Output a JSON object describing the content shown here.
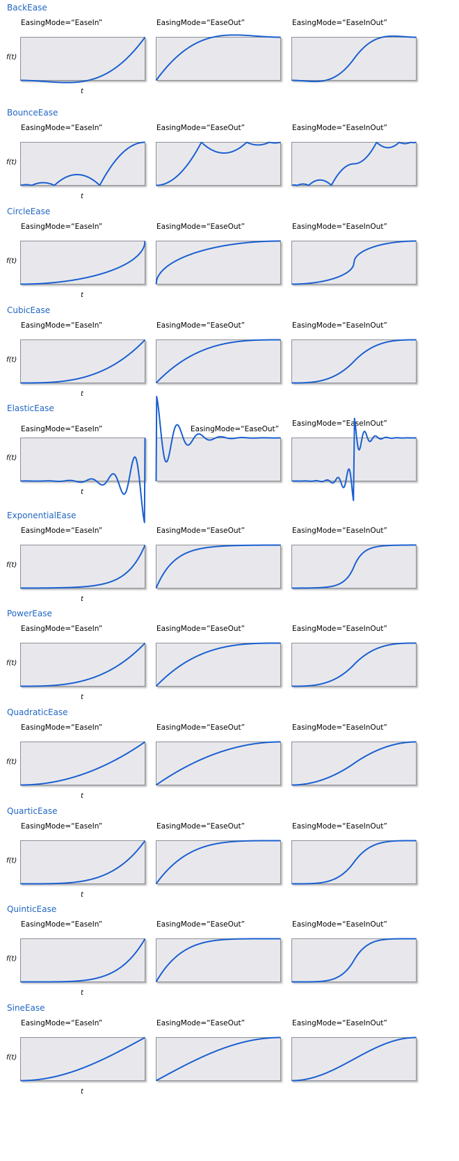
{
  "colors": {
    "title": "#1f66c4",
    "curve": "#1a5fd0",
    "panel_fill": "#e8e8ec",
    "panel_stroke": "#8a8f96"
  },
  "axis_labels": {
    "y": "f(t)",
    "x": "t"
  },
  "modes": [
    "EasingMode=“EaseIn”",
    "EasingMode=“EaseOut”",
    "EasingMode=“EaseInOut”"
  ],
  "chart_data": [
    {
      "name": "BackEase",
      "type": "line"
    },
    {
      "name": "BounceEase",
      "type": "line"
    },
    {
      "name": "CircleEase",
      "type": "line"
    },
    {
      "name": "CubicEase",
      "type": "line"
    },
    {
      "name": "ElasticEase",
      "type": "line"
    },
    {
      "name": "ExponentialEase",
      "type": "line"
    },
    {
      "name": "PowerEase",
      "type": "line"
    },
    {
      "name": "QuadraticEase",
      "type": "line"
    },
    {
      "name": "QuarticEase",
      "type": "line"
    },
    {
      "name": "QuinticEase",
      "type": "line"
    },
    {
      "name": "SineEase",
      "type": "line"
    }
  ]
}
